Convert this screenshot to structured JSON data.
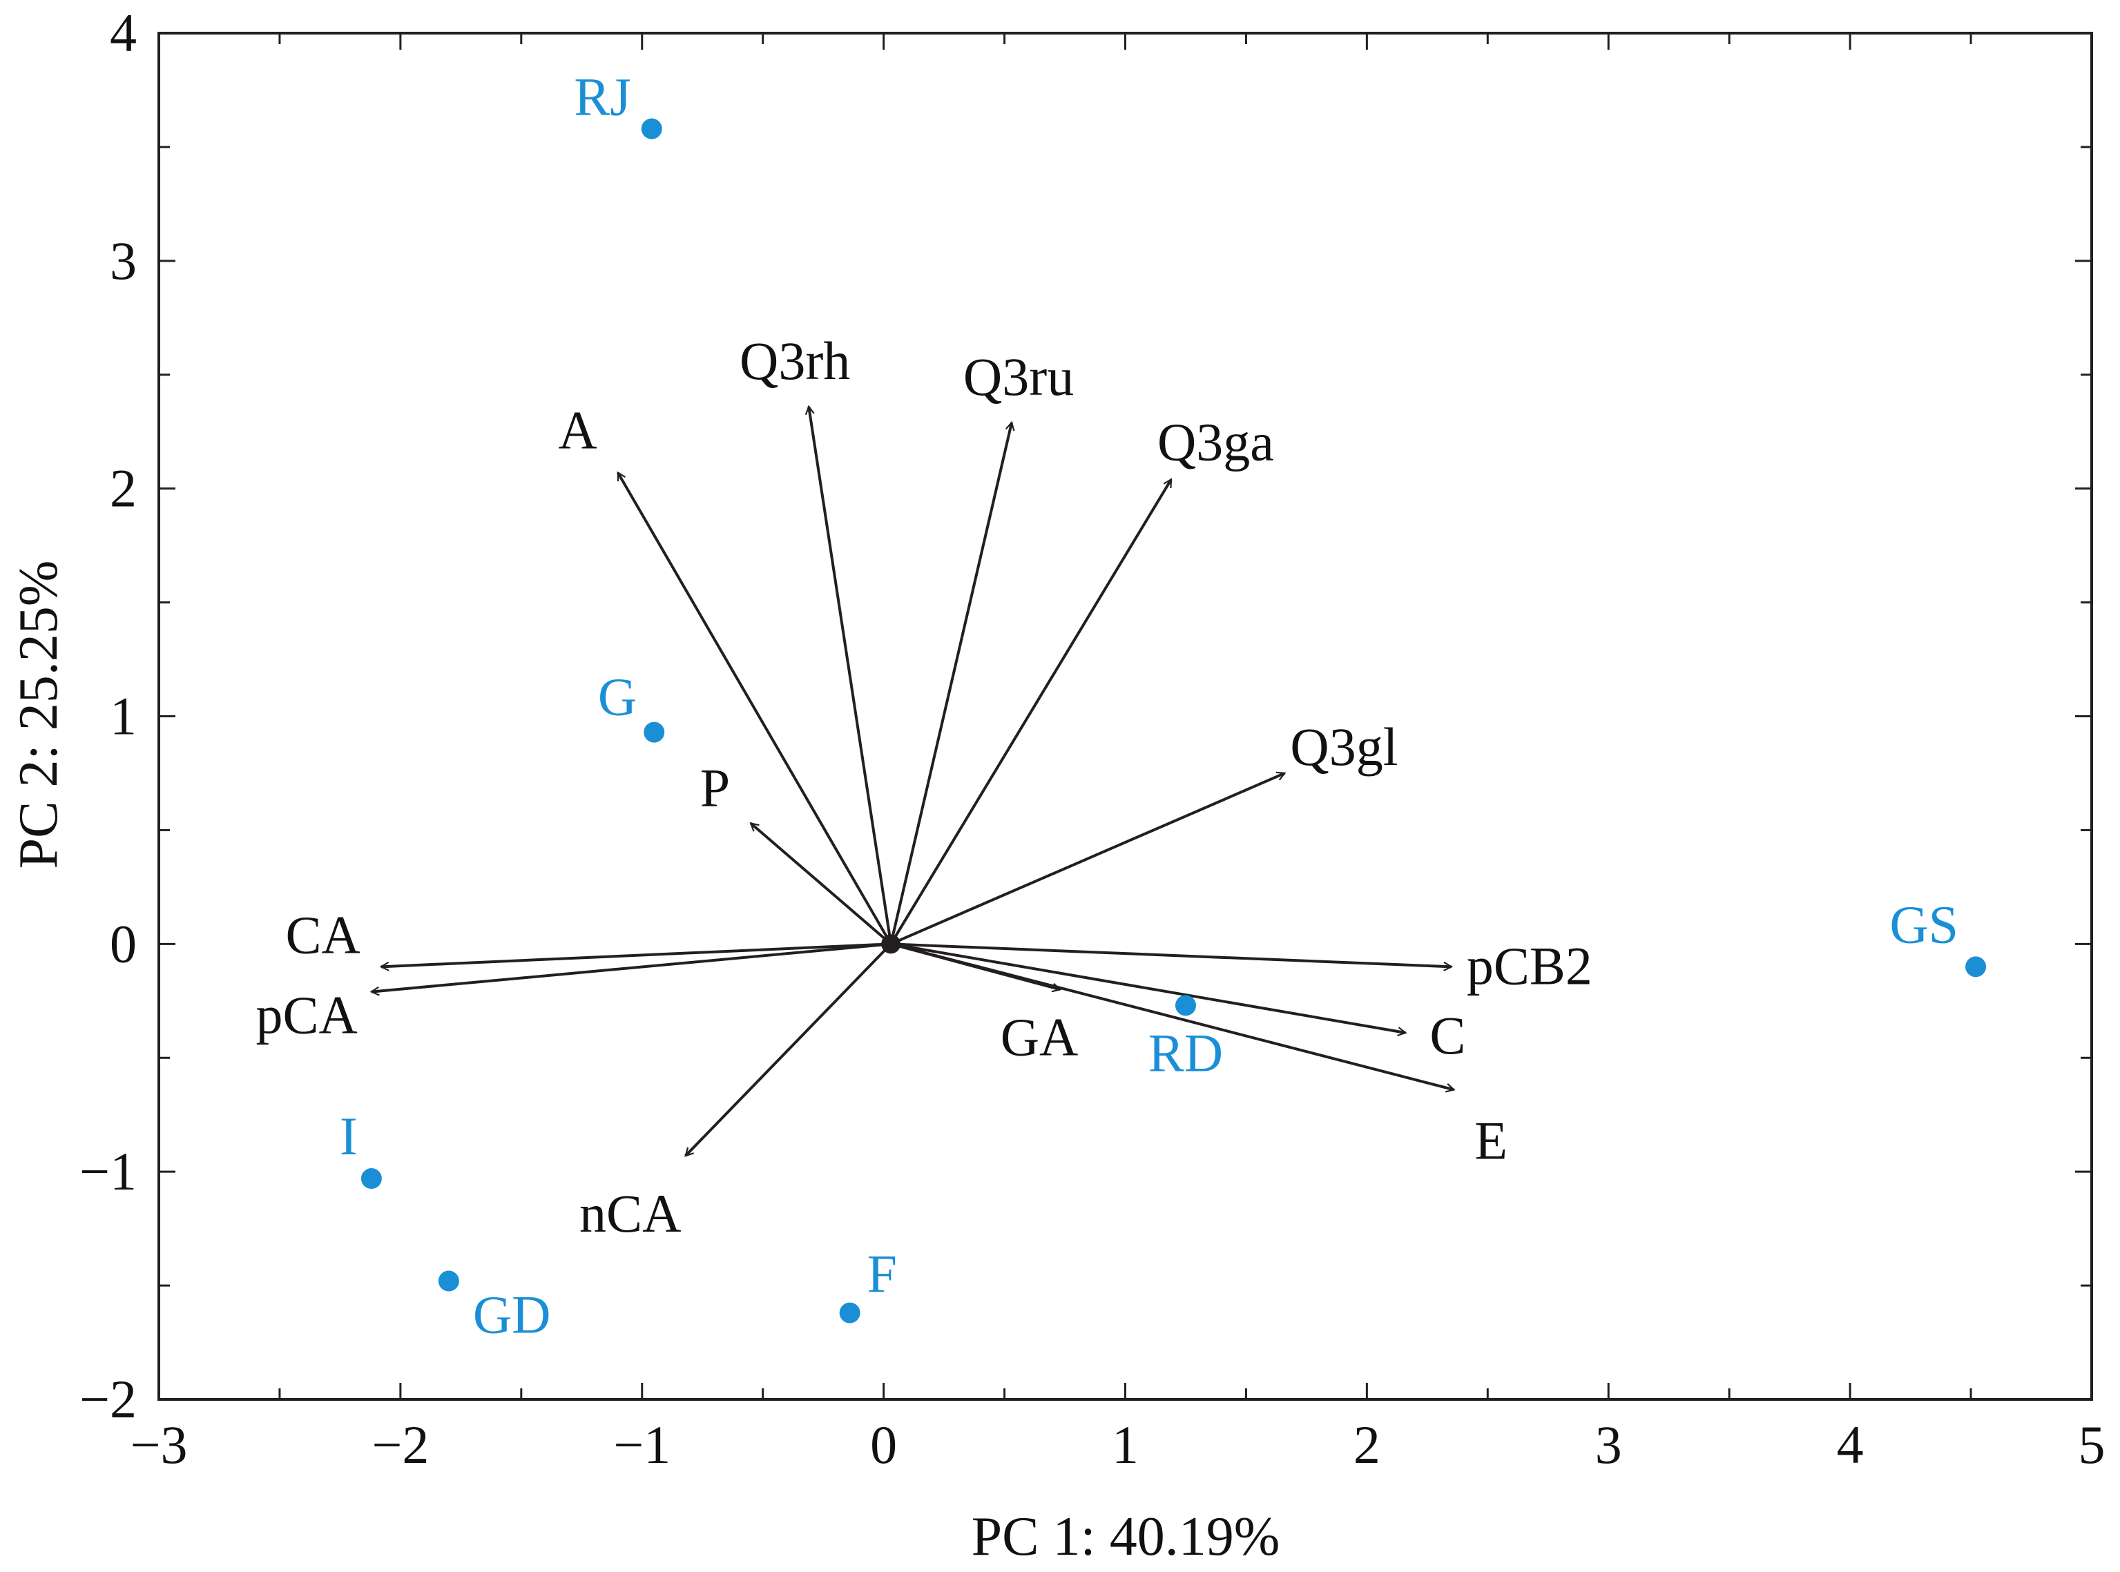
{
  "chart_data": {
    "type": "biplot",
    "xlabel": "PC 1: 40.19%",
    "ylabel": "PC 2: 25.25%",
    "xlim": [
      -3,
      5
    ],
    "ylim": [
      -2,
      4
    ],
    "xticks": [
      -3,
      -2,
      -1,
      0,
      1,
      2,
      3,
      4,
      5
    ],
    "yticks": [
      -2,
      -1,
      0,
      1,
      2,
      3,
      4
    ],
    "xtick_labels": [
      "−3",
      "−2",
      "−1",
      "0",
      "1",
      "2",
      "3",
      "4",
      "5"
    ],
    "ytick_labels": [
      "−2",
      "−1",
      "0",
      "1",
      "2",
      "3",
      "4"
    ],
    "grid": false,
    "origin": [
      0.03,
      0.0
    ],
    "point_color": "#1a8fd6",
    "vector_color": "#231f20",
    "samples": [
      {
        "label": "RJ",
        "x": -0.96,
        "y": 3.58
      },
      {
        "label": "G",
        "x": -0.95,
        "y": 0.93
      },
      {
        "label": "GS",
        "x": 4.52,
        "y": -0.1
      },
      {
        "label": "RD",
        "x": 1.25,
        "y": -0.27
      },
      {
        "label": "I",
        "x": -2.12,
        "y": -1.03
      },
      {
        "label": "GD",
        "x": -1.8,
        "y": -1.48
      },
      {
        "label": "F",
        "x": -0.14,
        "y": -1.62
      }
    ],
    "loadings": [
      {
        "label": "A",
        "x": -1.1,
        "y": 2.07
      },
      {
        "label": "Q3rh",
        "x": -0.31,
        "y": 2.36
      },
      {
        "label": "Q3ru",
        "x": 0.53,
        "y": 2.29
      },
      {
        "label": "Q3ga",
        "x": 1.19,
        "y": 2.04
      },
      {
        "label": "Q3gl",
        "x": 1.66,
        "y": 0.75
      },
      {
        "label": "P",
        "x": -0.55,
        "y": 0.53
      },
      {
        "label": "CA",
        "x": -2.08,
        "y": -0.1
      },
      {
        "label": "pCA",
        "x": -2.12,
        "y": -0.21
      },
      {
        "label": "pCB2",
        "x": 2.35,
        "y": -0.1
      },
      {
        "label": "C",
        "x": 2.16,
        "y": -0.39
      },
      {
        "label": "E",
        "x": 2.36,
        "y": -0.64
      },
      {
        "label": "GA",
        "x": 0.73,
        "y": -0.2
      },
      {
        "label": "nCA",
        "x": -0.82,
        "y": -0.93
      }
    ]
  }
}
